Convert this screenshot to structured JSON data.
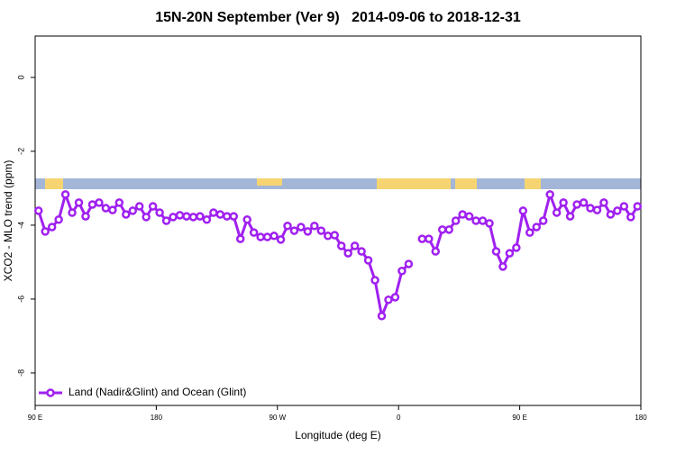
{
  "chart_data": {
    "type": "line",
    "title": "15N-20N September (Ver 9)   2014-09-06 to 2018-12-31",
    "x_label": "Longitude (deg E)",
    "y_label": "XCO2 - MLO trend (ppm)",
    "x": [
      92.5,
      97.5,
      102.5,
      107.5,
      112.5,
      117.5,
      122.5,
      127.5,
      132.5,
      137.5,
      142.5,
      147.5,
      152.5,
      157.5,
      162.5,
      167.5,
      172.5,
      177.5,
      182.5,
      187.5,
      192.5,
      197.5,
      202.5,
      207.5,
      212.5,
      217.5,
      222.5,
      227.5,
      232.5,
      237.5,
      242.5,
      247.5,
      252.5,
      257.5,
      262.5,
      267.5,
      272.5,
      277.5,
      282.5,
      287.5,
      292.5,
      297.5,
      302.5,
      307.5,
      312.5,
      317.5,
      322.5,
      327.5,
      332.5,
      337.5,
      342.5,
      347.5,
      352.5,
      357.5,
      362.5,
      367.5,
      372.5,
      377.5,
      382.5,
      387.5,
      392.5,
      397.5,
      402.5,
      407.5,
      412.5,
      417.5,
      422.5,
      427.5,
      432.5,
      437.5,
      442.5,
      447.5,
      452.5,
      457.5,
      462.5,
      467.5,
      472.5,
      477.5,
      482.5,
      487.5,
      492.5,
      497.5,
      502.5,
      507.5,
      512.5,
      517.5,
      522.5,
      527.5,
      532.5,
      537.5
    ],
    "series": [
      {
        "name": "Land (Nadir&Glint) and Ocean (Glint)",
        "color": "#a020f0",
        "values": [
          -3.61,
          -4.17,
          -4.05,
          -3.85,
          -3.17,
          -3.66,
          -3.39,
          -3.76,
          -3.44,
          -3.39,
          -3.54,
          -3.59,
          -3.39,
          -3.71,
          -3.61,
          -3.49,
          -3.78,
          -3.49,
          -3.66,
          -3.88,
          -3.78,
          -3.73,
          -3.76,
          -3.78,
          -3.76,
          -3.85,
          -3.66,
          -3.71,
          -3.76,
          -3.76,
          -4.37,
          -3.85,
          -4.2,
          -4.32,
          -4.32,
          -4.29,
          -4.39,
          -4.02,
          -4.15,
          -4.05,
          -4.17,
          -4.02,
          -4.15,
          -4.29,
          -4.27,
          -4.56,
          -4.76,
          -4.56,
          -4.71,
          -4.95,
          -5.49,
          -6.46,
          -6.02,
          -5.95,
          -5.24,
          -5.05,
          null,
          -4.37,
          -4.37,
          -4.71,
          -4.12,
          -4.12,
          -3.88,
          -3.71,
          -3.76,
          -3.88,
          -3.88,
          -3.95,
          -4.71,
          -5.12,
          -4.76,
          -4.61,
          -3.61,
          -4.2,
          -4.05,
          -3.88,
          -3.17,
          -3.66,
          -3.39,
          -3.76,
          -3.44,
          -3.39,
          -3.54,
          -3.59,
          -3.39,
          -3.71,
          -3.61,
          -3.49,
          -3.78,
          -3.49
        ]
      }
    ],
    "xlim": [
      90,
      540
    ],
    "xticks": [
      {
        "value": 90,
        "label": "90 E"
      },
      180,
      {
        "value": 270,
        "label": "90 W"
      },
      {
        "value": 360,
        "label": "0"
      },
      {
        "value": 450,
        "label": "90 E"
      },
      {
        "value": 540,
        "label": "180"
      }
    ],
    "ylim": [
      -8.88,
      1.12
    ],
    "yticks": [
      0,
      -2,
      -4,
      -6,
      -8
    ],
    "legend": "bottom-left"
  }
}
